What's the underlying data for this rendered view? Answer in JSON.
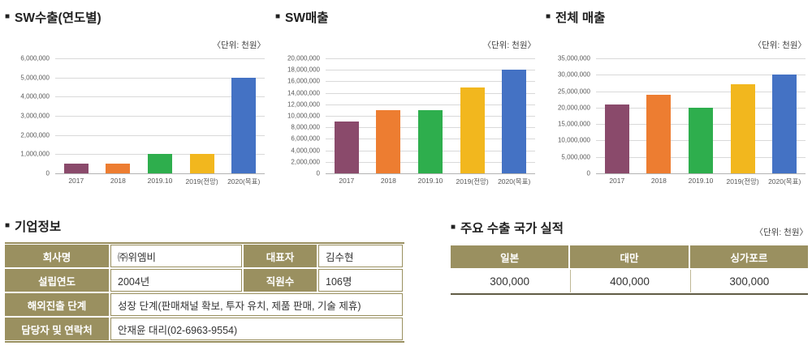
{
  "bullet": "■",
  "colors": {
    "bar_series": [
      "#8A4A6B",
      "#ED7D31",
      "#2EAE4D",
      "#F2B71E",
      "#4472C4"
    ],
    "table_header": "#9A9060",
    "table_border": "#9A9060",
    "export_bottom_border": "#615C45",
    "gridline": "#D9D9D9",
    "axis_text": "#595959",
    "title_text": "#222222"
  },
  "chart_data": [
    {
      "type": "bar",
      "title": "SW수출(연도별)",
      "unit": "〈단위: 천원〉",
      "categories": [
        "2017",
        "2018",
        "2019.10",
        "2019(전망)",
        "2020(목표)"
      ],
      "values": [
        500000,
        500000,
        1000000,
        1000000,
        5000000
      ],
      "xlabel": "",
      "ylabel": "",
      "ylim": [
        0,
        6000000
      ],
      "ytick_step": 1000000,
      "grid": true,
      "legend": false
    },
    {
      "type": "bar",
      "title": "SW매출",
      "unit": "〈단위: 천원〉",
      "categories": [
        "2017",
        "2018",
        "2019.10",
        "2019(전망)",
        "2020(목표)"
      ],
      "values": [
        9000000,
        11000000,
        11000000,
        15000000,
        18000000
      ],
      "xlabel": "",
      "ylabel": "",
      "ylim": [
        0,
        20000000
      ],
      "ytick_step": 2000000,
      "grid": true,
      "legend": false
    },
    {
      "type": "bar",
      "title": "전체 매출",
      "unit": "〈단위: 천원〉",
      "categories": [
        "2017",
        "2018",
        "2019.10",
        "2019(전망)",
        "2020(목표)"
      ],
      "values": [
        21000000,
        24000000,
        20000000,
        27000000,
        30000000
      ],
      "xlabel": "",
      "ylabel": "",
      "ylim": [
        0,
        35000000
      ],
      "ytick_step": 5000000,
      "grid": true,
      "legend": false
    }
  ],
  "company_info": {
    "title": "기업정보",
    "rows": [
      {
        "label": "회사명",
        "value": "㈜위엠비",
        "label2": "대표자",
        "value2": "김수현"
      },
      {
        "label": "설립연도",
        "value": "2004년",
        "label2": "직원수",
        "value2": "106명"
      },
      {
        "label": "해외진출 단계",
        "value": "성장 단계(판매채널 확보, 투자 유치, 제품 판매, 기술 제휴)"
      },
      {
        "label": "담당자 및 연락처",
        "value": "안재윤 대리(02-6963-9554)"
      }
    ]
  },
  "export_table": {
    "title": "주요 수출 국가 실적",
    "unit": "〈단위: 천원〉",
    "columns": [
      "일본",
      "대만",
      "싱가포르"
    ],
    "values": [
      "300,000",
      "400,000",
      "300,000"
    ]
  }
}
